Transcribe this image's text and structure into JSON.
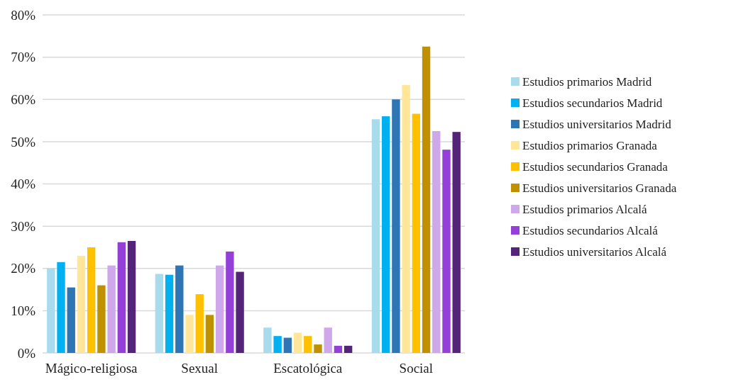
{
  "chart_data": {
    "type": "bar",
    "categories": [
      "Mágico-religiosa",
      "Sexual",
      "Escatológica",
      "Social"
    ],
    "series": [
      {
        "name": "Estudios primarios Madrid",
        "color": "#a8dcec",
        "values": [
          20,
          18.7,
          6,
          55.3
        ]
      },
      {
        "name": "Estudios secundarios Madrid",
        "color": "#00b0f0",
        "values": [
          21.5,
          18.5,
          4,
          56
        ]
      },
      {
        "name": "Estudios universitarios Madrid",
        "color": "#2e75b6",
        "values": [
          15.5,
          20.7,
          3.6,
          60
        ]
      },
      {
        "name": "Estudios primarios Granada",
        "color": "#ffe699",
        "values": [
          23,
          9,
          4.8,
          63.4
        ]
      },
      {
        "name": "Estudios secundarios Granada",
        "color": "#ffc000",
        "values": [
          25,
          13.9,
          4,
          56.6
        ]
      },
      {
        "name": "Estudios universitarios Granada",
        "color": "#bf9000",
        "values": [
          16,
          9,
          2,
          72.5
        ]
      },
      {
        "name": "Estudios primarios Alcalá",
        "color": "#cfa8ec",
        "values": [
          20.7,
          20.7,
          6,
          52.5
        ]
      },
      {
        "name": "Estudios secundarios Alcalá",
        "color": "#9440d8",
        "values": [
          26.2,
          24,
          1.7,
          48.1
        ]
      },
      {
        "name": "Estudios universitarios Alcalá",
        "color": "#532478",
        "values": [
          26.5,
          19.2,
          1.7,
          52.3
        ]
      }
    ],
    "ylim": [
      0,
      80
    ],
    "yticks": [
      {
        "value": 0,
        "label": "0%"
      },
      {
        "value": 10,
        "label": "10%"
      },
      {
        "value": 20,
        "label": "20%"
      },
      {
        "value": 30,
        "label": "30%"
      },
      {
        "value": 40,
        "label": "40%"
      },
      {
        "value": 50,
        "label": "50%"
      },
      {
        "value": 60,
        "label": "60%"
      },
      {
        "value": 70,
        "label": "70%"
      },
      {
        "value": 80,
        "label": "80%"
      }
    ],
    "grid": "y",
    "legend": "right"
  }
}
